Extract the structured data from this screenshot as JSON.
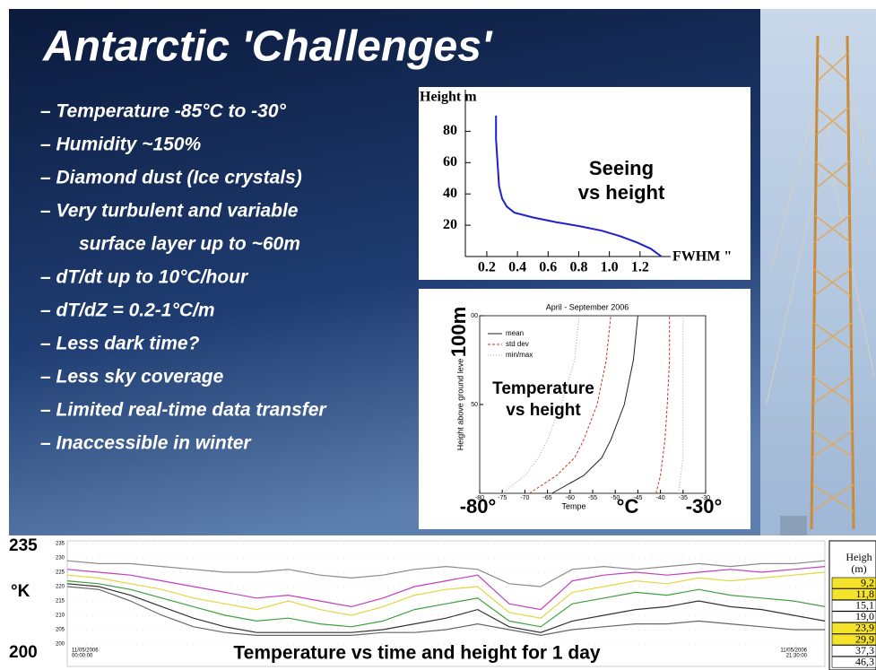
{
  "slide": {
    "title": "Antarctic 'Challenges'",
    "bullets": [
      [
        "– Temperature -85°C to -30°"
      ],
      [
        "– Humidity ~150%"
      ],
      [
        "– Diamond dust (Ice crystals)"
      ],
      [
        "– Very turbulent and variable",
        "surface layer up to ~60m"
      ],
      [
        "– dT/dt up to 10°C/hour"
      ],
      [
        "– dT/dZ = 0.2-1°C/m"
      ],
      [
        "– Less dark time?"
      ],
      [
        "– Less sky coverage"
      ],
      [
        "– Limited real-time data transfer"
      ],
      [
        "– Inaccessible in winter"
      ]
    ],
    "height_table": {
      "header": [
        "Heigh",
        "(m)"
      ],
      "rows": [
        {
          "label": "9,2",
          "highlight": true
        },
        {
          "label": "11,8",
          "highlight": true
        },
        {
          "label": "15,1",
          "highlight": false
        },
        {
          "label": "19,0",
          "highlight": false
        },
        {
          "label": "23,9",
          "highlight": true
        },
        {
          "label": "29,9",
          "highlight": true
        },
        {
          "label": "37,3",
          "highlight": false
        },
        {
          "label": "46,3",
          "highlight": false
        }
      ]
    }
  },
  "chart_data": [
    {
      "type": "line",
      "annotation": [
        "Seeing",
        "vs height"
      ],
      "y_label": "Height m",
      "x_label": "FWHM \"",
      "x": [
        0.26,
        0.26,
        0.27,
        0.28,
        0.3,
        0.33,
        0.38,
        0.5,
        0.65,
        0.8,
        0.95,
        1.07,
        1.18,
        1.27,
        1.34
      ],
      "values": [
        90,
        75,
        60,
        45,
        37,
        32,
        28,
        25,
        22,
        19.5,
        16.5,
        13,
        9,
        5,
        0
      ],
      "color": "#1f1fd0",
      "xlim": [
        0.06,
        1.4
      ],
      "ylim": [
        0,
        106
      ],
      "xticks": [
        0.2,
        0.4,
        0.6,
        0.8,
        {
          "value": 1.0,
          "label": "1.0"
        },
        1.2
      ],
      "yticks": [
        20,
        40,
        60,
        80
      ]
    },
    {
      "type": "line",
      "title": "April - September 2006",
      "y_label": "Height above ground leve",
      "x_label": "Tempe",
      "annotation": [
        "Temperature",
        "vs height"
      ],
      "height_label": "100m",
      "unit_label": "°C",
      "left_label": "-80°",
      "right_label": "-30°",
      "values": [
        0,
        10,
        20,
        30,
        50,
        75,
        100
      ],
      "series": [
        {
          "name": "mean",
          "color": "#222222",
          "dash": "none",
          "curves": [
            [
              -64,
              -57,
              -53,
              -51,
              -48,
              -46,
              -45
            ]
          ]
        },
        {
          "name": "std dev",
          "color": "#c0392b",
          "dash": "3,2",
          "curves": [
            [
              -69,
              -63,
              -59,
              -57,
              -54,
              -52,
              -51
            ],
            [
              -41,
              -40,
              -39.5,
              -39,
              -38.5,
              -38,
              -38
            ]
          ]
        },
        {
          "name": "min/max",
          "color": "#9aa0e0",
          "dash": "1,2",
          "curves": [
            [
              -75,
              -70,
              -67,
              -65,
              -62,
              -59,
              -58
            ],
            [
              -36,
              -35.5,
              -35,
              -35,
              -35,
              -35,
              -35
            ]
          ]
        }
      ],
      "xlim": [
        -80,
        -30
      ],
      "ylim": [
        0,
        100
      ],
      "xticks": [
        -80,
        -75,
        -70,
        -65,
        -60,
        -55,
        -50,
        -45,
        -40,
        -35,
        -30
      ],
      "yticks": [
        {
          "value": 100,
          "label": "00"
        },
        50
      ]
    },
    {
      "type": "line",
      "title": "Temperature vs time and height for 1 day",
      "y_label": "°K",
      "x_labels": [
        [
          "11/05/2006",
          "00:00:00"
        ],
        [
          "11/05/2006",
          "21:30:00"
        ]
      ],
      "x": [
        0,
        1,
        2,
        3,
        4,
        5,
        6,
        7,
        8,
        9,
        10,
        11,
        12,
        13,
        14,
        15,
        16,
        17,
        18,
        19,
        20,
        21,
        22,
        23,
        24
      ],
      "series": [
        {
          "name": null,
          "color": "#8a8a8a",
          "values": [
            229,
            228,
            228,
            227,
            226,
            225,
            225,
            226,
            224,
            223,
            224,
            226,
            227,
            226,
            221,
            220,
            226,
            227,
            226,
            227,
            228,
            227,
            228,
            228,
            229
          ]
        },
        {
          "name": null,
          "color": "#c040c0",
          "values": [
            226,
            225,
            224,
            222,
            220,
            218,
            216,
            217,
            215,
            213,
            216,
            220,
            222,
            224,
            214,
            212,
            222,
            224,
            225,
            224,
            225,
            226,
            225,
            226,
            227
          ]
        },
        {
          "name": null,
          "color": "#e0d840",
          "values": [
            224,
            223,
            221,
            219,
            216,
            214,
            212,
            215,
            212,
            210,
            213,
            217,
            219,
            220,
            211,
            209,
            218,
            220,
            222,
            221,
            223,
            222,
            223,
            224,
            225
          ]
        },
        {
          "name": null,
          "color": "#40a040",
          "values": [
            222,
            221,
            219,
            216,
            213,
            210,
            208,
            209,
            207,
            206,
            208,
            212,
            214,
            216,
            208,
            206,
            214,
            216,
            218,
            217,
            219,
            217,
            216,
            215,
            213
          ]
        },
        {
          "name": null,
          "color": "#333333",
          "values": [
            221,
            220,
            217,
            213,
            209,
            206,
            204,
            204,
            204,
            204,
            205,
            207,
            209,
            212,
            206,
            204,
            208,
            210,
            212,
            213,
            215,
            213,
            212,
            210,
            208
          ]
        },
        {
          "name": null,
          "color": "#666666",
          "values": [
            220,
            219,
            215,
            210,
            206,
            204,
            203,
            203,
            203,
            203,
            204,
            204,
            205,
            207,
            205,
            203,
            205,
            206,
            207,
            207,
            208,
            207,
            206,
            205,
            205
          ]
        }
      ],
      "xlim": [
        0,
        24
      ],
      "ylim": [
        200,
        235
      ],
      "yticks": [
        200,
        205,
        210,
        215,
        220,
        225,
        230,
        235
      ],
      "grid": true
    }
  ]
}
